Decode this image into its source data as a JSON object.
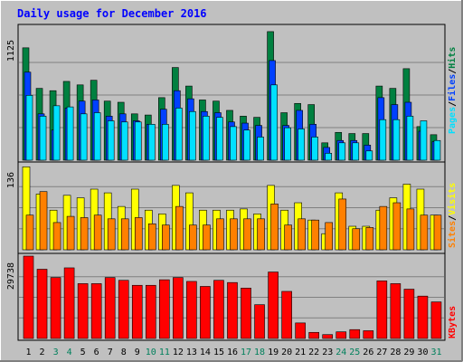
{
  "title": "Daily usage for December 2016",
  "colors": {
    "background": "#c0c0c0",
    "frame": "#ffffff",
    "title": "#0000ff",
    "hits": "#008040",
    "files": "#0040ff",
    "pages": "#00e0ff",
    "visits": "#ffff00",
    "sites": "#ff8000",
    "kbytes": "#ff0000",
    "weekend": "#00805c",
    "weekday": "#000000",
    "gridline": "#808080"
  },
  "chart_data": [
    {
      "type": "bar",
      "panel": "hits-files-pages",
      "y_axis_label": "1125",
      "ylim": [
        0,
        1125
      ],
      "legend": [
        "Pages",
        "Files",
        "Hits"
      ],
      "categories": [
        "1",
        "2",
        "3",
        "4",
        "5",
        "6",
        "7",
        "8",
        "9",
        "10",
        "11",
        "12",
        "13",
        "14",
        "15",
        "16",
        "17",
        "18",
        "19",
        "20",
        "21",
        "22",
        "23",
        "24",
        "25",
        "26",
        "27",
        "28",
        "29",
        "30",
        "31"
      ],
      "weekend_days": [
        "3",
        "4",
        "10",
        "11",
        "17",
        "18",
        "24",
        "25",
        "31"
      ],
      "series": [
        {
          "name": "Hits",
          "values": [
            970,
            620,
            600,
            680,
            650,
            690,
            510,
            500,
            400,
            390,
            540,
            800,
            640,
            520,
            510,
            430,
            380,
            370,
            1110,
            410,
            490,
            480,
            150,
            240,
            230,
            230,
            640,
            620,
            790,
            290,
            220
          ]
        },
        {
          "name": "Files",
          "values": [
            760,
            400,
            260,
            450,
            510,
            520,
            380,
            400,
            340,
            310,
            440,
            600,
            530,
            420,
            410,
            330,
            320,
            300,
            860,
            300,
            430,
            310,
            110,
            170,
            170,
            130,
            540,
            480,
            500,
            250,
            160
          ]
        },
        {
          "name": "Pages",
          "values": [
            560,
            380,
            470,
            460,
            400,
            410,
            340,
            330,
            330,
            310,
            310,
            450,
            420,
            380,
            370,
            290,
            260,
            200,
            650,
            280,
            270,
            200,
            60,
            150,
            150,
            80,
            350,
            350,
            380,
            340,
            170
          ]
        }
      ]
    },
    {
      "type": "bar",
      "panel": "visits-sites",
      "y_axis_label": "136",
      "ylim": [
        0,
        136
      ],
      "legend": [
        "Sites",
        "Visits"
      ],
      "categories": [
        "1",
        "2",
        "3",
        "4",
        "5",
        "6",
        "7",
        "8",
        "9",
        "10",
        "11",
        "12",
        "13",
        "14",
        "15",
        "16",
        "17",
        "18",
        "19",
        "20",
        "21",
        "22",
        "23",
        "24",
        "25",
        "26",
        "27",
        "28",
        "29",
        "30",
        "31"
      ],
      "series": [
        {
          "name": "Visits",
          "values": [
            134,
            90,
            64,
            88,
            84,
            98,
            92,
            70,
            98,
            64,
            58,
            104,
            92,
            64,
            64,
            64,
            66,
            58,
            104,
            64,
            76,
            48,
            26,
            92,
            38,
            38,
            64,
            84,
            106,
            98,
            56
          ]
        },
        {
          "name": "Sites",
          "values": [
            56,
            94,
            44,
            54,
            52,
            56,
            50,
            50,
            52,
            42,
            40,
            70,
            40,
            40,
            50,
            50,
            50,
            50,
            74,
            40,
            50,
            48,
            44,
            82,
            34,
            36,
            70,
            76,
            66,
            56,
            56
          ]
        }
      ]
    },
    {
      "type": "bar",
      "panel": "kbytes",
      "y_axis_label": "29738",
      "ylim": [
        0,
        29738
      ],
      "legend": [
        "KBytes"
      ],
      "categories": [
        "1",
        "2",
        "3",
        "4",
        "5",
        "6",
        "7",
        "8",
        "9",
        "10",
        "11",
        "12",
        "13",
        "14",
        "15",
        "16",
        "17",
        "18",
        "19",
        "20",
        "21",
        "22",
        "23",
        "24",
        "25",
        "26",
        "27",
        "28",
        "29",
        "30",
        "31"
      ],
      "series": [
        {
          "name": "KBytes",
          "values": [
            29738,
            25000,
            22000,
            25500,
            19800,
            19800,
            22000,
            21000,
            19200,
            19200,
            21200,
            22000,
            20600,
            18800,
            21000,
            20200,
            18200,
            12200,
            24000,
            17000,
            5600,
            2200,
            1400,
            2400,
            3200,
            2800,
            20800,
            19800,
            17800,
            15300,
            13200
          ]
        }
      ]
    }
  ]
}
